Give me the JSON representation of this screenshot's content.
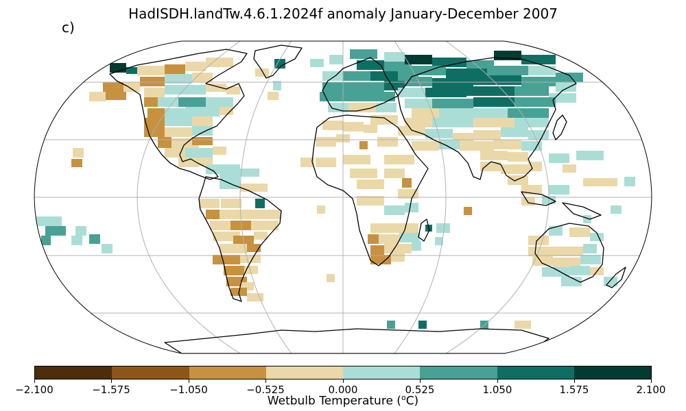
{
  "title": "HadISDH.landTw.4.6.1.2024f anomaly January-December 2007",
  "panel_label": "c)",
  "colorbar": {
    "label_prefix": "Wetbulb Temperature (",
    "label_sup": "o",
    "label_suffix": "C)",
    "ticks": [
      "−2.100",
      "−1.575",
      "−1.050",
      "−0.525",
      "0.000",
      "0.525",
      "1.050",
      "1.575",
      "2.100"
    ],
    "colors": [
      "#4d2d0b",
      "#8e5518",
      "#c7913f",
      "#ebd8a8",
      "#abddd7",
      "#48a195",
      "#0f6e64",
      "#013b31"
    ]
  },
  "map": {
    "projection": "Robinson",
    "variable": "wetbulb temperature anomaly",
    "period": "January-December 2007",
    "colors": {
      "land_outline": "#000000",
      "gridline": "#b0b0b0",
      "background": "#ffffff"
    }
  }
}
